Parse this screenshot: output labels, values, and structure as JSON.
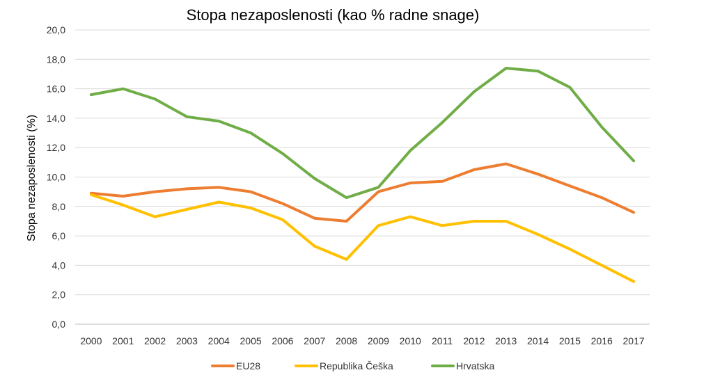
{
  "chart_data": {
    "type": "line",
    "title": "Stopa nezaposlenosti  (kao % radne snage)",
    "xlabel": "",
    "ylabel": "Stopa nezaposlenosti (%)",
    "ylim": [
      0,
      20
    ],
    "ytick_step": 2,
    "ytick_labels": [
      "0,0",
      "2,0",
      "4,0",
      "6,0",
      "8,0",
      "10,0",
      "12,0",
      "14,0",
      "16,0",
      "18,0",
      "20,0"
    ],
    "categories": [
      "2000",
      "2001",
      "2002",
      "2003",
      "2004",
      "2005",
      "2006",
      "2007",
      "2008",
      "2009",
      "2010",
      "2011",
      "2012",
      "2013",
      "2014",
      "2015",
      "2016",
      "2017"
    ],
    "grid": true,
    "legend_position": "bottom",
    "series": [
      {
        "name": "EU28",
        "color": "#ED7D31",
        "values": [
          8.9,
          8.7,
          9.0,
          9.2,
          9.3,
          9.0,
          8.2,
          7.2,
          7.0,
          9.0,
          9.6,
          9.7,
          10.5,
          10.9,
          10.2,
          9.4,
          8.6,
          7.6
        ]
      },
      {
        "name": "Republika Češka",
        "color": "#FFC000",
        "values": [
          8.8,
          8.1,
          7.3,
          7.8,
          8.3,
          7.9,
          7.1,
          5.3,
          4.4,
          6.7,
          7.3,
          6.7,
          7.0,
          7.0,
          6.1,
          5.1,
          4.0,
          2.9
        ]
      },
      {
        "name": "Hrvatska",
        "color": "#70AD47",
        "values": [
          15.6,
          16.0,
          15.3,
          14.1,
          13.8,
          13.0,
          11.6,
          9.9,
          8.6,
          9.3,
          11.8,
          13.7,
          15.8,
          17.4,
          17.2,
          16.1,
          13.4,
          11.1
        ]
      }
    ]
  }
}
